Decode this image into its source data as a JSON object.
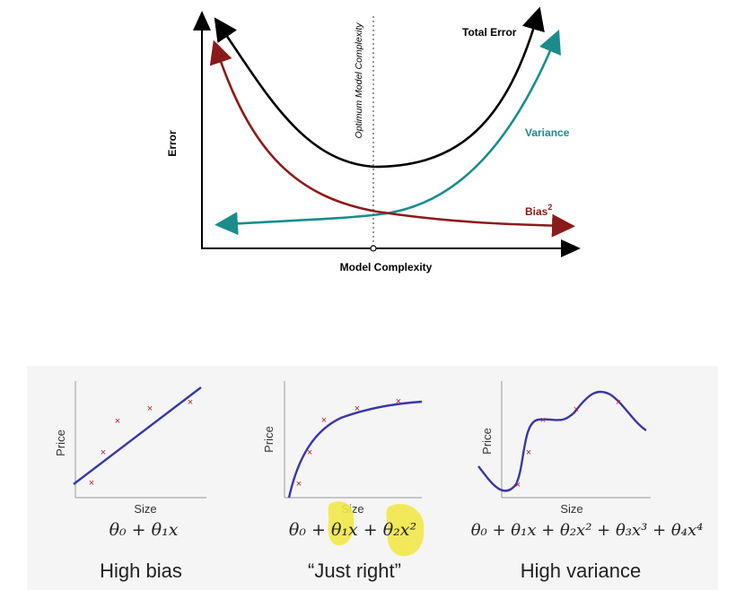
{
  "top_diagram": {
    "y_axis_label": "Error",
    "x_axis_label": "Model Complexity",
    "optimum_label": "Optimum Model Complexity",
    "curves": {
      "total_error": {
        "label": "Total Error",
        "color": "#000000"
      },
      "variance": {
        "label": "Variance",
        "color": "#1a8c8c"
      },
      "bias": {
        "label": "Bias",
        "superscript": "2",
        "color": "#8b1a1a"
      }
    }
  },
  "bottom_panels": [
    {
      "y_label": "Price",
      "x_label": "Size",
      "formula": "θ₀ + θ₁x",
      "caption": "High bias"
    },
    {
      "y_label": "Price",
      "x_label": "Size",
      "formula": "θ₀ + θ₁x + θ₂x²",
      "caption": "“Just right”"
    },
    {
      "y_label": "Price",
      "x_label": "Size",
      "formula": "θ₀ + θ₁x + θ₂x² + θ₃x³ + θ₄x⁴",
      "caption": "High variance"
    }
  ],
  "colors": {
    "fit_line": "#3a36a8",
    "data_point": "#b02030",
    "highlight": "#f2e84a",
    "background_panel": "#f5f5f5"
  }
}
